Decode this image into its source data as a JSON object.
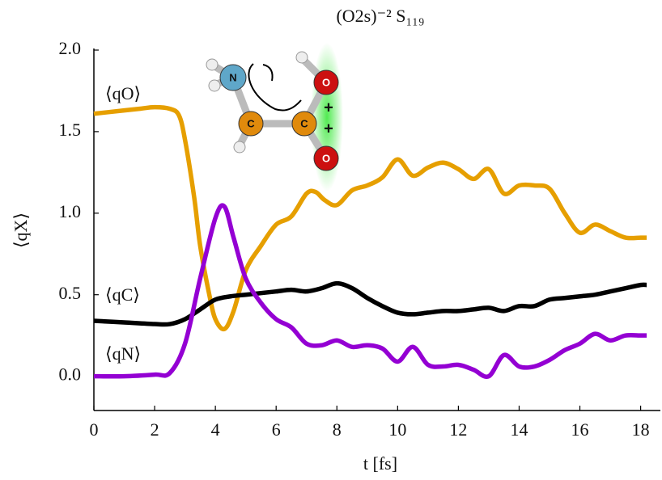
{
  "chart_data": {
    "type": "line",
    "title": "(O2s)⁻²   S₁₁₉",
    "xlabel": "t [fs]",
    "ylabel": "⟨qX⟩",
    "xlim": [
      0,
      18.65
    ],
    "ylim": [
      -0.21,
      2.0
    ],
    "xticks": [
      0,
      2,
      4,
      6,
      8,
      10,
      12,
      14,
      16,
      18
    ],
    "yticks": [
      {
        "value": 0,
        "label": "0.0"
      },
      0.5,
      {
        "value": 1,
        "label": "1.0"
      },
      1.5,
      {
        "value": 2,
        "label": "2.0"
      }
    ],
    "series": [
      {
        "name": "⟨qO⟩",
        "color": "#e69f00",
        "x": [
          0,
          0.5,
          1,
          1.5,
          2,
          2.5,
          2.8,
          3,
          3.3,
          3.5,
          3.8,
          4,
          4.3,
          4.6,
          5,
          5.5,
          6,
          6.5,
          7,
          7.3,
          7.6,
          8,
          8.5,
          9,
          9.5,
          10,
          10.5,
          11,
          11.5,
          12,
          12.5,
          13,
          13.5,
          14,
          14.5,
          15,
          15.5,
          16,
          16.5,
          17,
          17.5,
          18,
          18.2
        ],
        "values": [
          1.61,
          1.62,
          1.63,
          1.64,
          1.65,
          1.64,
          1.6,
          1.45,
          1.1,
          0.8,
          0.5,
          0.35,
          0.29,
          0.4,
          0.65,
          0.8,
          0.93,
          0.98,
          1.12,
          1.13,
          1.08,
          1.05,
          1.14,
          1.17,
          1.22,
          1.33,
          1.23,
          1.28,
          1.31,
          1.27,
          1.21,
          1.27,
          1.12,
          1.17,
          1.17,
          1.15,
          1.0,
          0.88,
          0.93,
          0.89,
          0.85,
          0.85,
          0.85
        ]
      },
      {
        "name": "⟨qC⟩",
        "color": "#000000",
        "x": [
          0,
          1,
          2,
          2.5,
          3,
          3.5,
          4,
          4.5,
          5,
          5.5,
          6,
          6.5,
          7,
          7.5,
          8,
          8.5,
          9,
          9.5,
          10,
          10.5,
          11,
          11.5,
          12,
          12.5,
          13,
          13.5,
          14,
          14.5,
          15,
          15.5,
          16,
          16.5,
          17,
          17.5,
          18,
          18.2
        ],
        "values": [
          0.34,
          0.33,
          0.32,
          0.32,
          0.35,
          0.41,
          0.47,
          0.49,
          0.5,
          0.51,
          0.52,
          0.53,
          0.52,
          0.54,
          0.57,
          0.54,
          0.48,
          0.43,
          0.39,
          0.38,
          0.39,
          0.4,
          0.4,
          0.41,
          0.42,
          0.4,
          0.43,
          0.43,
          0.47,
          0.48,
          0.49,
          0.5,
          0.52,
          0.54,
          0.56,
          0.56
        ]
      },
      {
        "name": "⟨qN⟩",
        "color": "#9400d3",
        "x": [
          0,
          1,
          2,
          2.5,
          3,
          3.5,
          4,
          4.3,
          4.6,
          5,
          5.5,
          6,
          6.5,
          7,
          7.5,
          8,
          8.5,
          9,
          9.5,
          10,
          10.5,
          11,
          11.5,
          12,
          12.5,
          13,
          13.5,
          14,
          14.5,
          15,
          15.5,
          16,
          16.5,
          17,
          17.5,
          18,
          18.2
        ],
        "values": [
          0,
          0,
          0.01,
          0.02,
          0.2,
          0.6,
          0.97,
          1.04,
          0.85,
          0.6,
          0.45,
          0.35,
          0.3,
          0.2,
          0.19,
          0.22,
          0.18,
          0.19,
          0.17,
          0.09,
          0.18,
          0.07,
          0.06,
          0.07,
          0.04,
          0,
          0.13,
          0.06,
          0.06,
          0.1,
          0.16,
          0.2,
          0.26,
          0.22,
          0.25,
          0.25,
          0.25
        ]
      }
    ]
  },
  "inset": {
    "atoms": [
      "N",
      "C",
      "C",
      "O",
      "O"
    ],
    "charges": [
      "+",
      "+"
    ]
  }
}
